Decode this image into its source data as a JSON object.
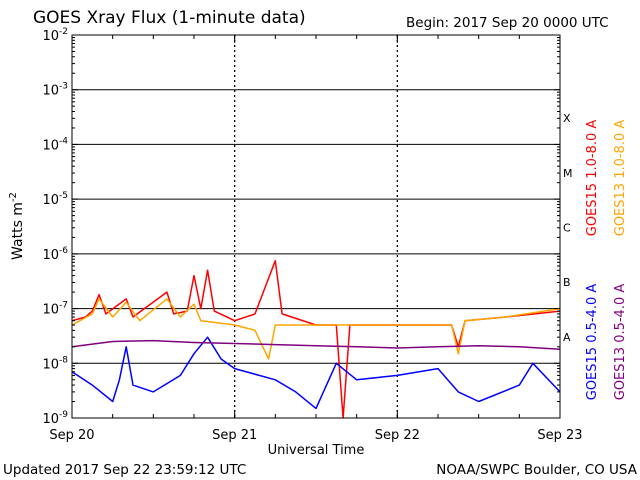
{
  "header": {
    "title": "GOES Xray Flux (1-minute data)",
    "begin": "Begin:  2017 Sep 20 0000 UTC"
  },
  "footer": {
    "updated": "Updated 2017 Sep 22 23:59:12 UTC",
    "credit": "NOAA/SWPC Boulder, CO USA"
  },
  "chart_data": {
    "type": "line",
    "title": "GOES Xray Flux (1-minute data)",
    "xlabel": "Universal Time",
    "ylabel": "Watts m-2",
    "ylabel_main": "Watts m",
    "ylabel_sup": "-2",
    "yscale": "log",
    "ylim": [
      1e-09,
      0.01
    ],
    "y_ticks": [
      {
        "value": 1e-09,
        "base": "10",
        "exp": "-9"
      },
      {
        "value": 1e-08,
        "base": "10",
        "exp": "-8"
      },
      {
        "value": 1e-07,
        "base": "10",
        "exp": "-7"
      },
      {
        "value": 1e-06,
        "base": "10",
        "exp": "-6"
      },
      {
        "value": 1e-05,
        "base": "10",
        "exp": "-5"
      },
      {
        "value": 0.0001,
        "base": "10",
        "exp": "-4"
      },
      {
        "value": 0.001,
        "base": "10",
        "exp": "-3"
      },
      {
        "value": 0.01,
        "base": "10",
        "exp": "-2"
      }
    ],
    "xlim": [
      "2017-09-20 00:00",
      "2017-09-23 00:00"
    ],
    "x_ticks": [
      {
        "date": "2017-09-20",
        "label": "Sep 20"
      },
      {
        "date": "2017-09-21",
        "label": "Sep 21"
      },
      {
        "date": "2017-09-22",
        "label": "Sep 22"
      },
      {
        "date": "2017-09-23",
        "label": "Sep 23"
      }
    ],
    "flare_classes": [
      {
        "label": "A",
        "lower": 1e-08
      },
      {
        "label": "B",
        "lower": 1e-07
      },
      {
        "label": "C",
        "lower": 1e-06
      },
      {
        "label": "M",
        "lower": 1e-05
      },
      {
        "label": "X",
        "lower": 0.0001
      }
    ],
    "grid": true,
    "legend_position": "right",
    "series": [
      {
        "name": "GOES15 1.0-8.0 A",
        "color": "#ff0000",
        "points": [
          [
            "2017-09-20 00:00",
            6e-08
          ],
          [
            "2017-09-20 02:00",
            7e-08
          ],
          [
            "2017-09-20 03:00",
            9e-08
          ],
          [
            "2017-09-20 04:00",
            1.8e-07
          ],
          [
            "2017-09-20 05:00",
            8e-08
          ],
          [
            "2017-09-20 08:00",
            1.5e-07
          ],
          [
            "2017-09-20 09:00",
            7e-08
          ],
          [
            "2017-09-20 14:00",
            2e-07
          ],
          [
            "2017-09-20 15:00",
            8e-08
          ],
          [
            "2017-09-20 17:00",
            9e-08
          ],
          [
            "2017-09-20 18:00",
            4e-07
          ],
          [
            "2017-09-20 19:00",
            1e-07
          ],
          [
            "2017-09-20 20:00",
            5e-07
          ],
          [
            "2017-09-20 21:00",
            9e-08
          ],
          [
            "2017-09-21 00:00",
            6e-08
          ],
          [
            "2017-09-21 03:00",
            8e-08
          ],
          [
            "2017-09-21 06:00",
            7.5e-07
          ],
          [
            "2017-09-21 07:00",
            8e-08
          ],
          [
            "2017-09-21 12:00",
            5e-08
          ],
          [
            "2017-09-21 15:00",
            5e-08
          ],
          [
            "2017-09-21 16:00",
            1e-09
          ],
          [
            "2017-09-21 17:00",
            5e-08
          ],
          [
            "2017-09-22 00:00",
            5e-08
          ],
          [
            "2017-09-22 08:00",
            5e-08
          ],
          [
            "2017-09-22 09:00",
            2e-08
          ],
          [
            "2017-09-22 10:00",
            6e-08
          ],
          [
            "2017-09-22 16:00",
            7e-08
          ],
          [
            "2017-09-23 00:00",
            9e-08
          ]
        ]
      },
      {
        "name": "GOES13 1.0-8.0 A",
        "color": "#ffa500",
        "points": [
          [
            "2017-09-20 00:00",
            5e-08
          ],
          [
            "2017-09-20 03:00",
            8e-08
          ],
          [
            "2017-09-20 04:00",
            1.5e-07
          ],
          [
            "2017-09-20 06:00",
            7e-08
          ],
          [
            "2017-09-20 08:00",
            1.3e-07
          ],
          [
            "2017-09-20 10:00",
            6e-08
          ],
          [
            "2017-09-20 14:00",
            1.5e-07
          ],
          [
            "2017-09-20 16:00",
            7e-08
          ],
          [
            "2017-09-20 18:00",
            1.2e-07
          ],
          [
            "2017-09-20 19:00",
            6e-08
          ],
          [
            "2017-09-21 00:00",
            5e-08
          ],
          [
            "2017-09-21 03:00",
            4e-08
          ],
          [
            "2017-09-21 05:00",
            1.2e-08
          ],
          [
            "2017-09-21 06:00",
            5e-08
          ],
          [
            "2017-09-21 12:00",
            5e-08
          ],
          [
            "2017-09-22 00:00",
            5e-08
          ],
          [
            "2017-09-22 08:00",
            5e-08
          ],
          [
            "2017-09-22 09:00",
            1.5e-08
          ],
          [
            "2017-09-22 10:00",
            6e-08
          ],
          [
            "2017-09-22 16:00",
            7e-08
          ],
          [
            "2017-09-23 00:00",
            1e-07
          ]
        ]
      },
      {
        "name": "GOES15 0.5-4.0 A",
        "color": "#0000ff",
        "points": [
          [
            "2017-09-20 00:00",
            7e-09
          ],
          [
            "2017-09-20 03:00",
            4e-09
          ],
          [
            "2017-09-20 06:00",
            2e-09
          ],
          [
            "2017-09-20 07:00",
            5e-09
          ],
          [
            "2017-09-20 08:00",
            2e-08
          ],
          [
            "2017-09-20 09:00",
            4e-09
          ],
          [
            "2017-09-20 12:00",
            3e-09
          ],
          [
            "2017-09-20 16:00",
            6e-09
          ],
          [
            "2017-09-20 18:00",
            1.5e-08
          ],
          [
            "2017-09-20 20:00",
            3e-08
          ],
          [
            "2017-09-20 22:00",
            1.2e-08
          ],
          [
            "2017-09-21 00:00",
            8e-09
          ],
          [
            "2017-09-21 06:00",
            5e-09
          ],
          [
            "2017-09-21 09:00",
            3e-09
          ],
          [
            "2017-09-21 12:00",
            1.5e-09
          ],
          [
            "2017-09-21 15:00",
            1e-08
          ],
          [
            "2017-09-21 18:00",
            5e-09
          ],
          [
            "2017-09-22 00:00",
            6e-09
          ],
          [
            "2017-09-22 06:00",
            8e-09
          ],
          [
            "2017-09-22 09:00",
            3e-09
          ],
          [
            "2017-09-22 12:00",
            2e-09
          ],
          [
            "2017-09-22 18:00",
            4e-09
          ],
          [
            "2017-09-22 20:00",
            1e-08
          ],
          [
            "2017-09-23 00:00",
            3e-09
          ]
        ]
      },
      {
        "name": "GOES13 0.5-4.0 A",
        "color": "#800080",
        "points": [
          [
            "2017-09-20 00:00",
            2e-08
          ],
          [
            "2017-09-20 06:00",
            2.5e-08
          ],
          [
            "2017-09-20 12:00",
            2.6e-08
          ],
          [
            "2017-09-20 18:00",
            2.4e-08
          ],
          [
            "2017-09-21 00:00",
            2.3e-08
          ],
          [
            "2017-09-21 06:00",
            2.2e-08
          ],
          [
            "2017-09-21 12:00",
            2.1e-08
          ],
          [
            "2017-09-21 18:00",
            2e-08
          ],
          [
            "2017-09-22 00:00",
            1.9e-08
          ],
          [
            "2017-09-22 06:00",
            2e-08
          ],
          [
            "2017-09-22 12:00",
            2.1e-08
          ],
          [
            "2017-09-22 18:00",
            2e-08
          ],
          [
            "2017-09-23 00:00",
            1.8e-08
          ]
        ]
      }
    ]
  }
}
